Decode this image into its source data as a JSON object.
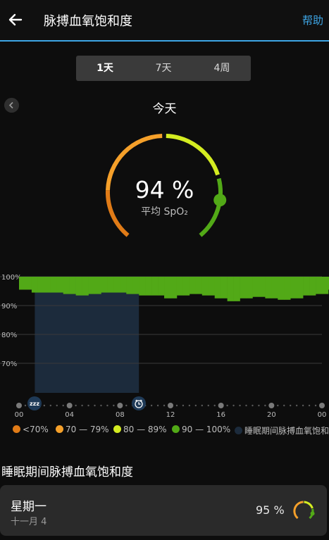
{
  "header": {
    "title": "脉搏血氧饱和度",
    "help_label": "帮助"
  },
  "tabs": [
    {
      "label": "1天",
      "active": true
    },
    {
      "label": "7天",
      "active": false
    },
    {
      "label": "4周",
      "active": false
    }
  ],
  "day_label": "今天",
  "gauge": {
    "value_text": "94 %",
    "subtitle": "平均 SpO₂",
    "value_percent": 94
  },
  "colors": {
    "accent": "#3ea6e6",
    "below70": "#e07b17",
    "r70_79": "#f5a02a",
    "r80_89": "#d4ec21",
    "r90_100": "#52a917",
    "sleep": "#1c2b3c"
  },
  "chart_data": {
    "type": "bar",
    "y_tick_labels": [
      "100%",
      "90%",
      "80%",
      "70%"
    ],
    "ylim": [
      60,
      100
    ],
    "x_tick_labels": [
      "00",
      "04",
      "08",
      "12",
      "16",
      "20",
      "00"
    ],
    "x_range_hours": [
      0,
      24
    ],
    "bar_width_hours": 0.5,
    "start_hour": 0,
    "values": [
      95.5,
      95.5,
      94.5,
      94.5,
      94.5,
      94.5,
      94.5,
      94,
      94,
      93.5,
      93.5,
      94,
      94,
      94.5,
      94.5,
      94.5,
      94.5,
      94,
      94,
      93.5,
      93.5,
      93.5,
      93.5,
      92.5,
      92.5,
      93.5,
      93.5,
      94,
      94,
      93.5,
      93.5,
      92.5,
      92.5,
      91.5,
      91.5,
      92.5,
      92.5,
      93,
      93,
      92.5,
      92.5,
      92,
      92,
      92.5,
      92.5,
      93.5,
      93.5,
      94,
      94,
      95.5,
      95.5,
      95.5
    ],
    "sleep_period_hours": [
      1.25,
      9.5
    ],
    "sleep_icon": "zzz-icon",
    "wake_icon": "alarm-clock-icon"
  },
  "legend": [
    {
      "label": "<70%",
      "color": "#e07b17"
    },
    {
      "label": "70 — 79%",
      "color": "#f5a02a"
    },
    {
      "label": "80 — 89%",
      "color": "#d4ec21"
    },
    {
      "label": "90 — 100%",
      "color": "#52a917"
    },
    {
      "label": "睡眠期间脉搏血氧饱和度",
      "color": "#1c2b3c"
    }
  ],
  "sleep_section": {
    "title": "睡眠期间脉搏血氧饱和度",
    "card": {
      "day": "星期一",
      "date": "十一月 4",
      "value_text": "95 %",
      "value_percent": 95
    }
  }
}
